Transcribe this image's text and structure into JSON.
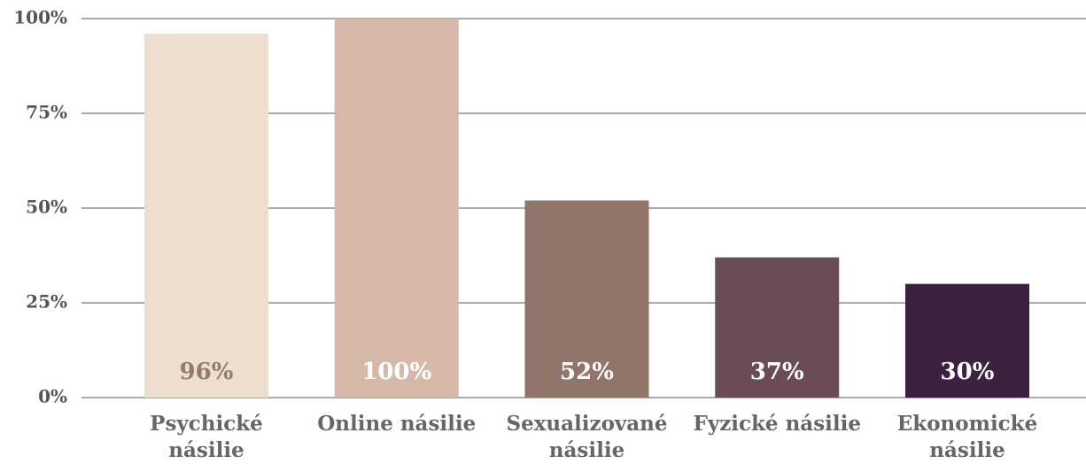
{
  "chart_data": {
    "type": "bar",
    "categories": [
      "Psychické násilie",
      "Online násilie",
      "Sexualizované násilie",
      "Fyzické násilie",
      "Ekonomické násilie"
    ],
    "values": [
      96,
      100,
      52,
      37,
      30
    ],
    "value_labels": [
      "96%",
      "100%",
      "52%",
      "37%",
      "30%"
    ],
    "colors": [
      "#ecdfd0",
      "#d6b8a8",
      "#92756a",
      "#6a4b58",
      "#3c223e"
    ],
    "value_label_colors": [
      "#967a6e",
      "#ffffff",
      "#ffffff",
      "#ffffff",
      "#ffffff"
    ],
    "ylim": [
      0,
      100
    ],
    "yticks": [
      {
        "value": 0,
        "label": "0%"
      },
      {
        "value": 25,
        "label": "25%"
      },
      {
        "value": 50,
        "label": "50%"
      },
      {
        "value": 75,
        "label": "75%"
      },
      {
        "value": 100,
        "label": "100%"
      }
    ],
    "grid": true
  }
}
